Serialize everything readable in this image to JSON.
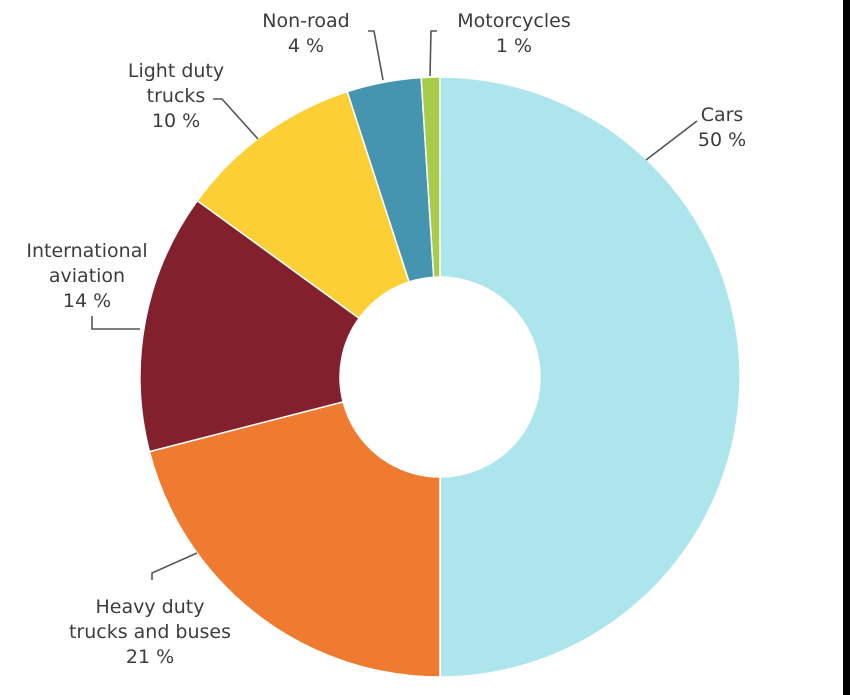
{
  "chart_data": {
    "type": "pie",
    "donut": true,
    "title": "",
    "unit": "%",
    "slices": [
      {
        "label_lines": [
          "Cars",
          "50 %"
        ],
        "value": 50,
        "color": "#ade5ec"
      },
      {
        "label_lines": [
          "Heavy duty",
          "trucks and buses",
          "21 %"
        ],
        "value": 21,
        "color": "#ef7b31"
      },
      {
        "label_lines": [
          "International",
          "aviation",
          "14 %"
        ],
        "value": 14,
        "color": "#82202e"
      },
      {
        "label_lines": [
          "Light duty",
          "trucks",
          "10 %"
        ],
        "value": 10,
        "color": "#fcd034"
      },
      {
        "label_lines": [
          "Non-road",
          "4 %"
        ],
        "value": 4,
        "color": "#4595b0"
      },
      {
        "label_lines": [
          "Motorcycles",
          "1 %"
        ],
        "value": 1,
        "color": "#a6cc4a"
      }
    ],
    "legend": "none"
  }
}
